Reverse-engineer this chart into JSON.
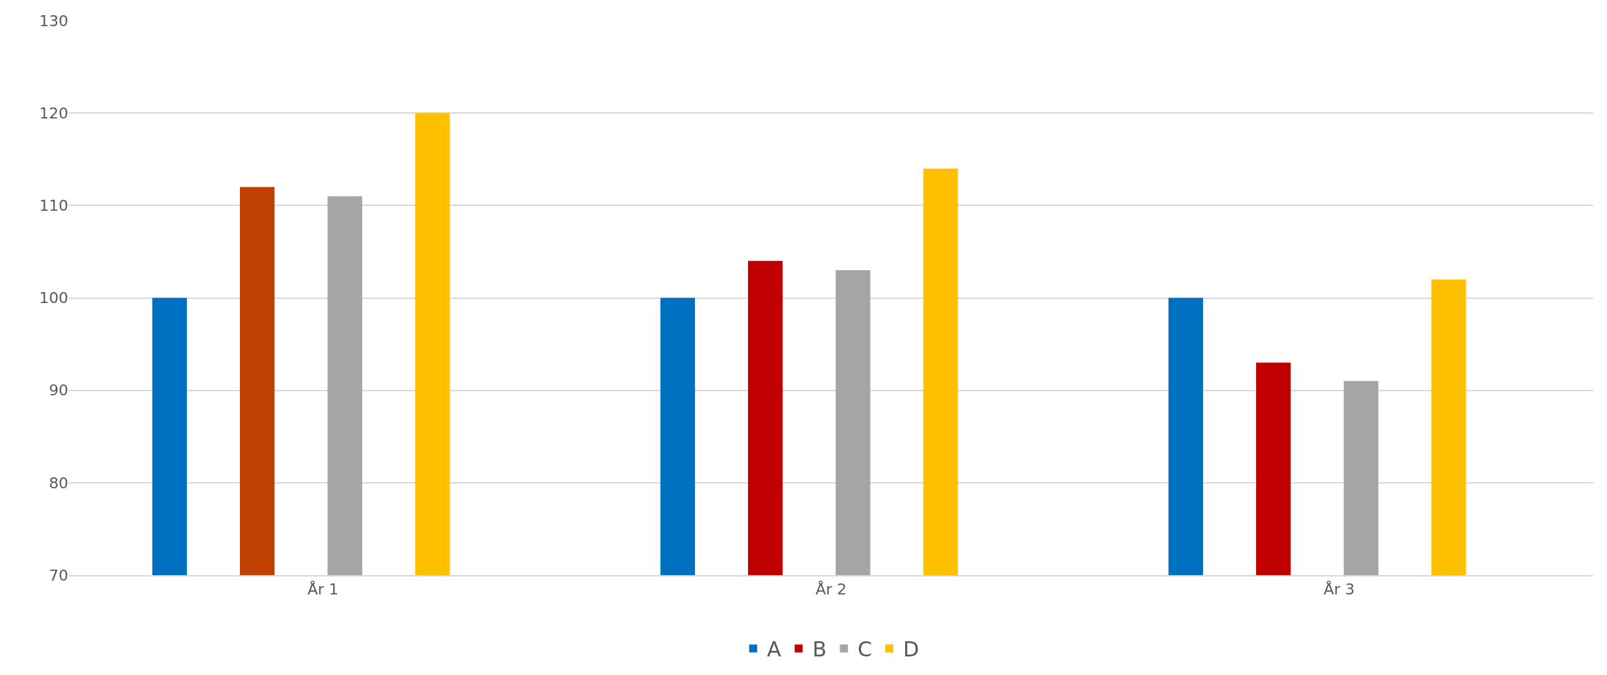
{
  "chart_data": {
    "type": "bar",
    "categories": [
      "År 1",
      "År 2",
      "År 3"
    ],
    "series": [
      {
        "name": "A",
        "color": "#0070c0",
        "values": [
          100,
          100,
          100
        ]
      },
      {
        "name": "B",
        "color": "#c00000",
        "colors": [
          "#bf4000",
          "#c00000",
          "#c00000"
        ],
        "values": [
          112,
          104,
          93
        ]
      },
      {
        "name": "C",
        "color": "#a5a5a5",
        "values": [
          111,
          103,
          91
        ]
      },
      {
        "name": "D",
        "color": "#ffc000",
        "values": [
          120,
          114,
          102
        ]
      }
    ],
    "ylim": [
      70,
      130
    ],
    "yticks": [
      70,
      80,
      90,
      100,
      110,
      120,
      130
    ],
    "grid": "y",
    "legend": "bottom"
  }
}
